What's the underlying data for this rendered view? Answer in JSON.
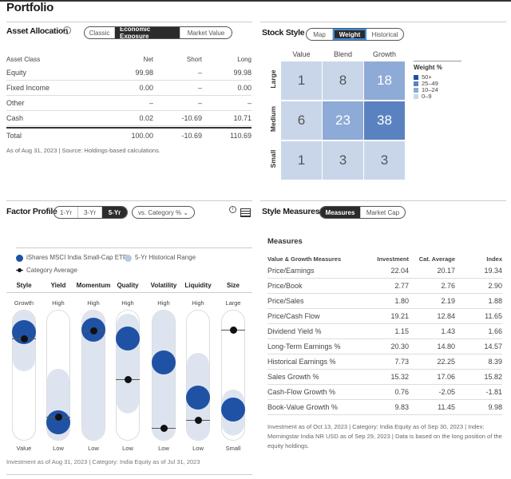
{
  "title": "Portfolio",
  "asset_allocation": {
    "title": "Asset Allocation",
    "tabs": [
      "Classic",
      "Economic Exposure",
      "Market Value"
    ],
    "active_tab": "Economic Exposure",
    "columns": [
      "Asset Class",
      "Net",
      "Short",
      "Long"
    ],
    "rows": [
      {
        "label": "Equity",
        "net": "99.98",
        "short": "–",
        "long": "99.98"
      },
      {
        "label": "Fixed Income",
        "net": "0.00",
        "short": "–",
        "long": "0.00"
      },
      {
        "label": "Other",
        "net": "–",
        "short": "–",
        "long": "–"
      },
      {
        "label": "Cash",
        "net": "0.02",
        "short": "-10.69",
        "long": "10.71"
      }
    ],
    "total": {
      "label": "Total",
      "net": "100.00",
      "short": "-10.69",
      "long": "110.69"
    },
    "footnote": "As of Aug 31, 2023 | Source: Holdings-based calculations."
  },
  "stock_style": {
    "title": "Stock Style",
    "tabs": [
      "Map",
      "Weight",
      "Historical"
    ],
    "active_tab": "Weight",
    "columns": [
      "Value",
      "Blend",
      "Growth"
    ],
    "rows": [
      "Large",
      "Medium",
      "Small"
    ],
    "values": [
      [
        1,
        8,
        18
      ],
      [
        6,
        23,
        38
      ],
      [
        1,
        3,
        3
      ]
    ],
    "legend_title": "Weight %",
    "legend": [
      {
        "label": "50+",
        "color": "#1f4fa0"
      },
      {
        "label": "25–49",
        "color": "#5b82c0"
      },
      {
        "label": "10–24",
        "color": "#8eaad6"
      },
      {
        "label": "0–9",
        "color": "#c9d6ea"
      }
    ]
  },
  "factor_profile": {
    "title": "Factor Profile",
    "tabs": [
      "1-Yr",
      "3-Yr",
      "5-Yr"
    ],
    "active_tab": "5-Yr",
    "dropdown": "vs. Category %",
    "legend": {
      "fund": "iShares MSCI India Small-Cap ETF",
      "range": "5-Yr Historical Range",
      "category": "Category Average"
    },
    "colors": {
      "fund": "#1f52a5",
      "range": "#dde4f0",
      "category": "#111111"
    },
    "factors": [
      {
        "name": "Style",
        "top": "Growth",
        "bottom": "Value",
        "fund": 83,
        "category": 78,
        "range": [
          59,
          95
        ]
      },
      {
        "name": "Yield",
        "top": "High",
        "bottom": "Low",
        "fund": 14,
        "category": 18,
        "range": [
          0,
          49
        ]
      },
      {
        "name": "Momentum",
        "top": "High",
        "bottom": "Low",
        "fund": 85,
        "category": 84,
        "range": [
          0,
          100
        ]
      },
      {
        "name": "Quality",
        "top": "High",
        "bottom": "Low",
        "fund": 78,
        "category": 47,
        "range": [
          27,
          91
        ]
      },
      {
        "name": "Volatility",
        "top": "High",
        "bottom": "Low",
        "fund": 60,
        "category": 10,
        "range": [
          0,
          95
        ]
      },
      {
        "name": "Liquidity",
        "top": "High",
        "bottom": "Low",
        "fund": 33,
        "category": 16,
        "range": [
          0,
          61
        ]
      },
      {
        "name": "Size",
        "top": "Large",
        "bottom": "Small",
        "fund": 24,
        "category": 85,
        "range": [
          10,
          33
        ]
      }
    ],
    "footnote": "Investment as of Aug 31, 2023 | Category: India Equity as of Jul 31, 2023"
  },
  "style_measures": {
    "title": "Style Measures",
    "tabs": [
      "Measures",
      "Market Cap"
    ],
    "active_tab": "Measures",
    "subtitle": "Measures",
    "columns": [
      "Value & Growth Measures",
      "Investment",
      "Cat. Average",
      "Index"
    ],
    "rows": [
      [
        "Price/Earnings",
        "22.04",
        "20.17",
        "19.34"
      ],
      [
        "Price/Book",
        "2.77",
        "2.76",
        "2.90"
      ],
      [
        "Price/Sales",
        "1.80",
        "2.19",
        "1.88"
      ],
      [
        "Price/Cash Flow",
        "19.21",
        "12.84",
        "11.65"
      ],
      [
        "Dividend Yield %",
        "1.15",
        "1.43",
        "1.66"
      ],
      [
        "Long-Term Earnings %",
        "20.30",
        "14.80",
        "14.57"
      ],
      [
        "Historical Earnings %",
        "7.73",
        "22.25",
        "8.39"
      ],
      [
        "Sales Growth %",
        "15.32",
        "17.06",
        "15.82"
      ],
      [
        "Cash-Flow Growth %",
        "0.76",
        "-2.05",
        "-1.81"
      ],
      [
        "Book-Value Growth %",
        "9.83",
        "11.45",
        "9.98"
      ]
    ],
    "footnote": "Investment as of Oct 13, 2023 | Category: India Equity as of Sep 30, 2023 | Index: Morningstar India NR USD as of Sep 29, 2023 | Data is based on the long position of the equity holdings."
  }
}
